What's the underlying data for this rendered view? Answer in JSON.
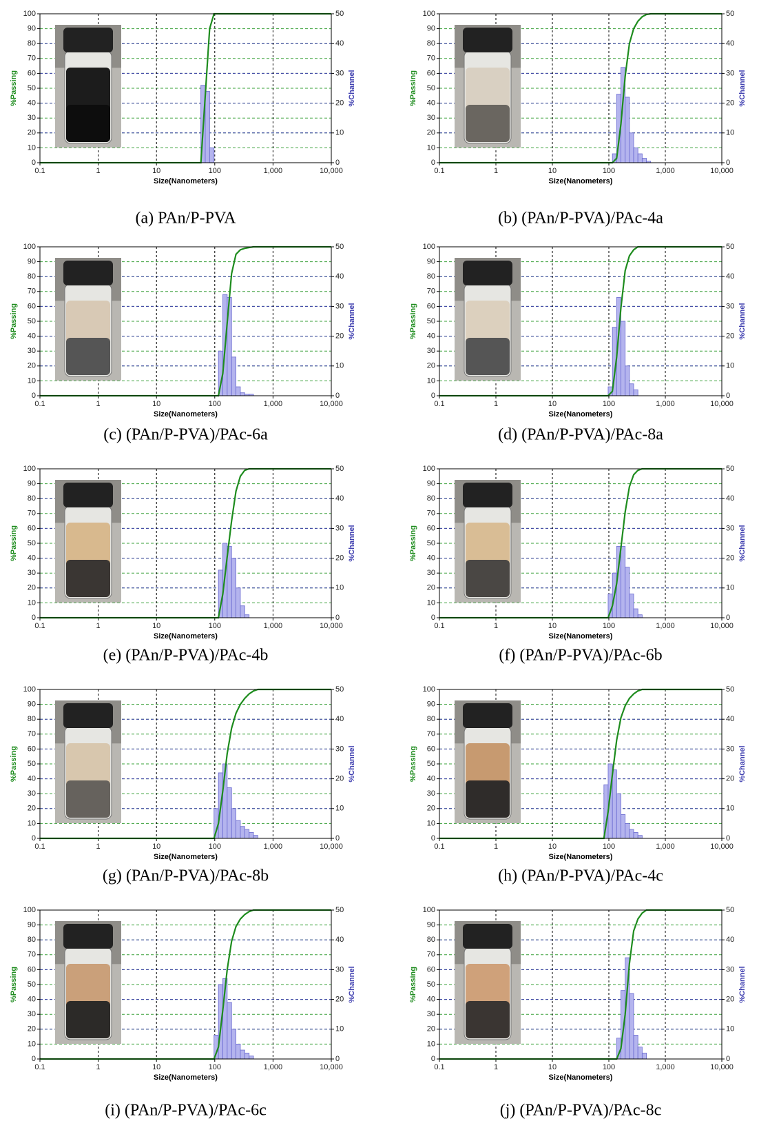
{
  "chart_data": [
    {
      "type": "combo",
      "caption": "(a) PAn/P-PVA",
      "xlabel": "Size(Nanometers)",
      "ylabel": "%Passing",
      "y2label": "%Channel",
      "log_x": true,
      "grid": true,
      "xlim": [
        0.1,
        10000
      ],
      "xticks": [
        0.1,
        1,
        10,
        100,
        {
          "value": 1000,
          "label": "1,000"
        },
        {
          "value": 10000,
          "label": "10,000"
        }
      ],
      "ylim": [
        0,
        100
      ],
      "yticks": [
        0,
        10,
        20,
        30,
        40,
        50,
        60,
        70,
        80,
        90,
        100
      ],
      "y2lim": [
        0,
        50
      ],
      "y2ticks": [
        0,
        10,
        20,
        30,
        40,
        50
      ],
      "passing": {
        "color": "#1e8c1e",
        "x": [
          0.1,
          57.8,
          68.7,
          81.7,
          97.1,
          10000
        ],
        "values": [
          0,
          0,
          45,
          90,
          100,
          100
        ]
      },
      "channel": {
        "color": "#b4b4ee",
        "axis": "y2",
        "bins": [
          57.8,
          68.7,
          81.7,
          97.1
        ],
        "values": [
          26,
          24,
          5
        ]
      }
    },
    {
      "type": "combo",
      "caption": "(b) (PAn/P-PVA)/PAc-4a",
      "xlabel": "Size(Nanometers)",
      "ylabel": "%Passing",
      "y2label": "%Channel",
      "log_x": true,
      "grid": true,
      "xlim": [
        0.1,
        10000
      ],
      "xticks": [
        0.1,
        1,
        10,
        100,
        {
          "value": 1000,
          "label": "1,000"
        },
        {
          "value": 10000,
          "label": "10,000"
        }
      ],
      "ylim": [
        0,
        100
      ],
      "yticks": [
        0,
        10,
        20,
        30,
        40,
        50,
        60,
        70,
        80,
        90,
        100
      ],
      "y2lim": [
        0,
        50
      ],
      "y2ticks": [
        0,
        10,
        20,
        30,
        40,
        50
      ],
      "passing": {
        "color": "#1e8c1e",
        "x": [
          0.1,
          115.6,
          137.5,
          163.5,
          194.5,
          231.3,
          275,
          327,
          388.9,
          462.5,
          550,
          10000
        ],
        "values": [
          0,
          0,
          3,
          26,
          58,
          80,
          90,
          95,
          98,
          99.5,
          100,
          100
        ]
      },
      "channel": {
        "color": "#b4b4ee",
        "axis": "y2",
        "bins": [
          115.6,
          137.5,
          163.5,
          194.5,
          231.3,
          275,
          327,
          388.9,
          462.5,
          550
        ],
        "values": [
          3,
          23,
          32,
          22,
          10,
          5,
          3,
          1.5,
          0.5
        ]
      }
    },
    {
      "type": "combo",
      "caption": "(c) (PAn/P-PVA)/PAc-6a",
      "xlabel": "Size(Nanometers)",
      "ylabel": "%Passing",
      "y2label": "%Channel",
      "log_x": true,
      "grid": true,
      "xlim": [
        0.1,
        10000
      ],
      "xticks": [
        0.1,
        1,
        10,
        100,
        {
          "value": 1000,
          "label": "1,000"
        },
        {
          "value": 10000,
          "label": "10,000"
        }
      ],
      "ylim": [
        0,
        100
      ],
      "yticks": [
        0,
        10,
        20,
        30,
        40,
        50,
        60,
        70,
        80,
        90,
        100
      ],
      "y2lim": [
        0,
        50
      ],
      "y2ticks": [
        0,
        10,
        20,
        30,
        40,
        50
      ],
      "passing": {
        "color": "#1e8c1e",
        "x": [
          0.1,
          115.6,
          137.5,
          163.5,
          194.5,
          231.3,
          275,
          327,
          388.9,
          462.5,
          10000
        ],
        "values": [
          0,
          0,
          15,
          49,
          82,
          95,
          98,
          99,
          99.5,
          100,
          100
        ]
      },
      "channel": {
        "color": "#b4b4ee",
        "axis": "y2",
        "bins": [
          115.6,
          137.5,
          163.5,
          194.5,
          231.3,
          275,
          327,
          388.9,
          462.5
        ],
        "values": [
          15,
          34,
          33,
          13,
          3,
          1,
          0.5,
          0.5
        ]
      }
    },
    {
      "type": "combo",
      "caption": "(d) (PAn/P-PVA)/PAc-8a",
      "xlabel": "Size(Nanometers)",
      "ylabel": "%Passing",
      "y2label": "%Channel",
      "log_x": true,
      "grid": true,
      "xlim": [
        0.1,
        10000
      ],
      "xticks": [
        0.1,
        1,
        10,
        100,
        {
          "value": 1000,
          "label": "1,000"
        },
        {
          "value": 10000,
          "label": "10,000"
        }
      ],
      "ylim": [
        0,
        100
      ],
      "yticks": [
        0,
        10,
        20,
        30,
        40,
        50,
        60,
        70,
        80,
        90,
        100
      ],
      "y2lim": [
        0,
        50
      ],
      "y2ticks": [
        0,
        10,
        20,
        30,
        40,
        50
      ],
      "passing": {
        "color": "#1e8c1e",
        "x": [
          0.1,
          97.1,
          115.6,
          137.5,
          163.5,
          194.5,
          231.3,
          275,
          327,
          10000
        ],
        "values": [
          0,
          0,
          3,
          26,
          59,
          84,
          94,
          98,
          100,
          100
        ]
      },
      "channel": {
        "color": "#b4b4ee",
        "axis": "y2",
        "bins": [
          97.1,
          115.6,
          137.5,
          163.5,
          194.5,
          231.3,
          275,
          327
        ],
        "values": [
          3,
          23,
          33,
          25,
          10,
          4,
          2
        ]
      }
    },
    {
      "type": "combo",
      "caption": "(e) (PAn/P-PVA)/PAc-4b",
      "xlabel": "Size(Nanometers)",
      "ylabel": "%Passing",
      "y2label": "%Channel",
      "log_x": true,
      "grid": true,
      "xlim": [
        0.1,
        10000
      ],
      "xticks": [
        0.1,
        1,
        10,
        100,
        {
          "value": 1000,
          "label": "1,000"
        },
        {
          "value": 10000,
          "label": "10,000"
        }
      ],
      "ylim": [
        0,
        100
      ],
      "yticks": [
        0,
        10,
        20,
        30,
        40,
        50,
        60,
        70,
        80,
        90,
        100
      ],
      "y2lim": [
        0,
        50
      ],
      "y2ticks": [
        0,
        10,
        20,
        30,
        40,
        50
      ],
      "passing": {
        "color": "#1e8c1e",
        "x": [
          0.1,
          115.6,
          137.5,
          163.5,
          194.5,
          231.3,
          275,
          327,
          388.9,
          10000
        ],
        "values": [
          0,
          0,
          16,
          41,
          65,
          85,
          95,
          99,
          100,
          100
        ]
      },
      "channel": {
        "color": "#b4b4ee",
        "axis": "y2",
        "bins": [
          115.6,
          137.5,
          163.5,
          194.5,
          231.3,
          275,
          327,
          388.9
        ],
        "values": [
          16,
          25,
          24,
          20,
          10,
          4,
          1
        ]
      }
    },
    {
      "type": "combo",
      "caption": "(f) (PAn/P-PVA)/PAc-6b",
      "xlabel": "Size(Nanometers)",
      "ylabel": "%Passing",
      "y2label": "%Channel",
      "log_x": true,
      "grid": true,
      "xlim": [
        0.1,
        10000
      ],
      "xticks": [
        0.1,
        1,
        10,
        100,
        {
          "value": 1000,
          "label": "1,000"
        },
        {
          "value": 10000,
          "label": "10,000"
        }
      ],
      "ylim": [
        0,
        100
      ],
      "yticks": [
        0,
        10,
        20,
        30,
        40,
        50,
        60,
        70,
        80,
        90,
        100
      ],
      "y2lim": [
        0,
        50
      ],
      "y2ticks": [
        0,
        10,
        20,
        30,
        40,
        50
      ],
      "passing": {
        "color": "#1e8c1e",
        "x": [
          0.1,
          97.1,
          115.6,
          137.5,
          163.5,
          194.5,
          231.3,
          275,
          327,
          388.9,
          10000
        ],
        "values": [
          0,
          0,
          8,
          23,
          47,
          71,
          88,
          96,
          99,
          100,
          100
        ]
      },
      "channel": {
        "color": "#b4b4ee",
        "axis": "y2",
        "bins": [
          97.1,
          115.6,
          137.5,
          163.5,
          194.5,
          231.3,
          275,
          327,
          388.9
        ],
        "values": [
          8,
          15,
          24,
          24,
          17,
          8,
          3,
          1
        ]
      }
    },
    {
      "type": "combo",
      "caption": "(g) (PAn/P-PVA)/PAc-8b",
      "xlabel": "Size(Nanometers)",
      "ylabel": "%Passing",
      "y2label": "%Channel",
      "log_x": true,
      "grid": true,
      "xlim": [
        0.1,
        10000
      ],
      "xticks": [
        0.1,
        1,
        10,
        100,
        {
          "value": 1000,
          "label": "1,000"
        },
        {
          "value": 10000,
          "label": "10,000"
        }
      ],
      "ylim": [
        0,
        100
      ],
      "yticks": [
        0,
        10,
        20,
        30,
        40,
        50,
        60,
        70,
        80,
        90,
        100
      ],
      "y2lim": [
        0,
        50
      ],
      "y2ticks": [
        0,
        10,
        20,
        30,
        40,
        50
      ],
      "passing": {
        "color": "#1e8c1e",
        "x": [
          0.1,
          97.1,
          115.6,
          137.5,
          163.5,
          194.5,
          231.3,
          275,
          327,
          388.9,
          462.5,
          550,
          10000
        ],
        "values": [
          0,
          0,
          10,
          32,
          57,
          74,
          84,
          90,
          94,
          97,
          99,
          100,
          100
        ]
      },
      "channel": {
        "color": "#b4b4ee",
        "axis": "y2",
        "bins": [
          97.1,
          115.6,
          137.5,
          163.5,
          194.5,
          231.3,
          275,
          327,
          388.9,
          462.5,
          550
        ],
        "values": [
          10,
          22,
          25,
          17,
          10,
          6,
          4,
          3,
          2,
          1
        ]
      }
    },
    {
      "type": "combo",
      "caption": "(h) (PAn/P-PVA)/PAc-4c",
      "xlabel": "Size(Nanometers)",
      "ylabel": "%Passing",
      "y2label": "%Channel",
      "log_x": true,
      "grid": true,
      "xlim": [
        0.1,
        10000
      ],
      "xticks": [
        0.1,
        1,
        10,
        100,
        {
          "value": 1000,
          "label": "1,000"
        },
        {
          "value": 10000,
          "label": "10,000"
        }
      ],
      "ylim": [
        0,
        100
      ],
      "yticks": [
        0,
        10,
        20,
        30,
        40,
        50,
        60,
        70,
        80,
        90,
        100
      ],
      "y2lim": [
        0,
        50
      ],
      "y2ticks": [
        0,
        10,
        20,
        30,
        40,
        50
      ],
      "passing": {
        "color": "#1e8c1e",
        "x": [
          0.1,
          81.7,
          97.1,
          115.6,
          137.5,
          163.5,
          194.5,
          231.3,
          275,
          327,
          388.9,
          10000
        ],
        "values": [
          0,
          0,
          18,
          43,
          66,
          81,
          89,
          94,
          97,
          99,
          100,
          100
        ]
      },
      "channel": {
        "color": "#b4b4ee",
        "axis": "y2",
        "bins": [
          81.7,
          97.1,
          115.6,
          137.5,
          163.5,
          194.5,
          231.3,
          275,
          327,
          388.9
        ],
        "values": [
          18,
          25,
          23,
          15,
          8,
          5,
          3,
          2,
          1
        ]
      }
    },
    {
      "type": "combo",
      "caption": "(i) (PAn/P-PVA)/PAc-6c",
      "xlabel": "Size(Nanometers)",
      "ylabel": "%Passing",
      "y2label": "%Channel",
      "log_x": true,
      "grid": true,
      "xlim": [
        0.1,
        10000
      ],
      "xticks": [
        0.1,
        1,
        10,
        100,
        {
          "value": 1000,
          "label": "1,000"
        },
        {
          "value": 10000,
          "label": "10,000"
        }
      ],
      "ylim": [
        0,
        100
      ],
      "yticks": [
        0,
        10,
        20,
        30,
        40,
        50,
        60,
        70,
        80,
        90,
        100
      ],
      "y2lim": [
        0,
        50
      ],
      "y2ticks": [
        0,
        10,
        20,
        30,
        40,
        50
      ],
      "passing": {
        "color": "#1e8c1e",
        "x": [
          0.1,
          97.1,
          115.6,
          137.5,
          163.5,
          194.5,
          231.3,
          275,
          327,
          388.9,
          462.5,
          10000
        ],
        "values": [
          0,
          0,
          8,
          33,
          60,
          79,
          89,
          94,
          97,
          99,
          100,
          100
        ]
      },
      "channel": {
        "color": "#b4b4ee",
        "axis": "y2",
        "bins": [
          97.1,
          115.6,
          137.5,
          163.5,
          194.5,
          231.3,
          275,
          327,
          388.9,
          462.5
        ],
        "values": [
          8,
          25,
          27,
          19,
          10,
          5,
          3,
          2,
          1
        ]
      }
    },
    {
      "type": "combo",
      "caption": "(j) (PAn/P-PVA)/PAc-8c",
      "xlabel": "Size(Nanometers)",
      "ylabel": "%Passing",
      "y2label": "%Channel",
      "log_x": true,
      "grid": true,
      "xlim": [
        0.1,
        10000
      ],
      "xticks": [
        0.1,
        1,
        10,
        100,
        {
          "value": 1000,
          "label": "1,000"
        },
        {
          "value": 10000,
          "label": "10,000"
        }
      ],
      "ylim": [
        0,
        100
      ],
      "yticks": [
        0,
        10,
        20,
        30,
        40,
        50,
        60,
        70,
        80,
        90,
        100
      ],
      "y2lim": [
        0,
        50
      ],
      "y2ticks": [
        0,
        10,
        20,
        30,
        40,
        50
      ],
      "passing": {
        "color": "#1e8c1e",
        "x": [
          0.1,
          137.5,
          163.5,
          194.5,
          231.3,
          275,
          327,
          388.9,
          462.5,
          10000
        ],
        "values": [
          0,
          0,
          7,
          30,
          64,
          86,
          94,
          98,
          100,
          100
        ]
      },
      "channel": {
        "color": "#b4b4ee",
        "axis": "y2",
        "bins": [
          137.5,
          163.5,
          194.5,
          231.3,
          275,
          327,
          388.9,
          462.5
        ],
        "values": [
          7,
          23,
          34,
          22,
          8,
          4,
          2
        ]
      }
    }
  ]
}
